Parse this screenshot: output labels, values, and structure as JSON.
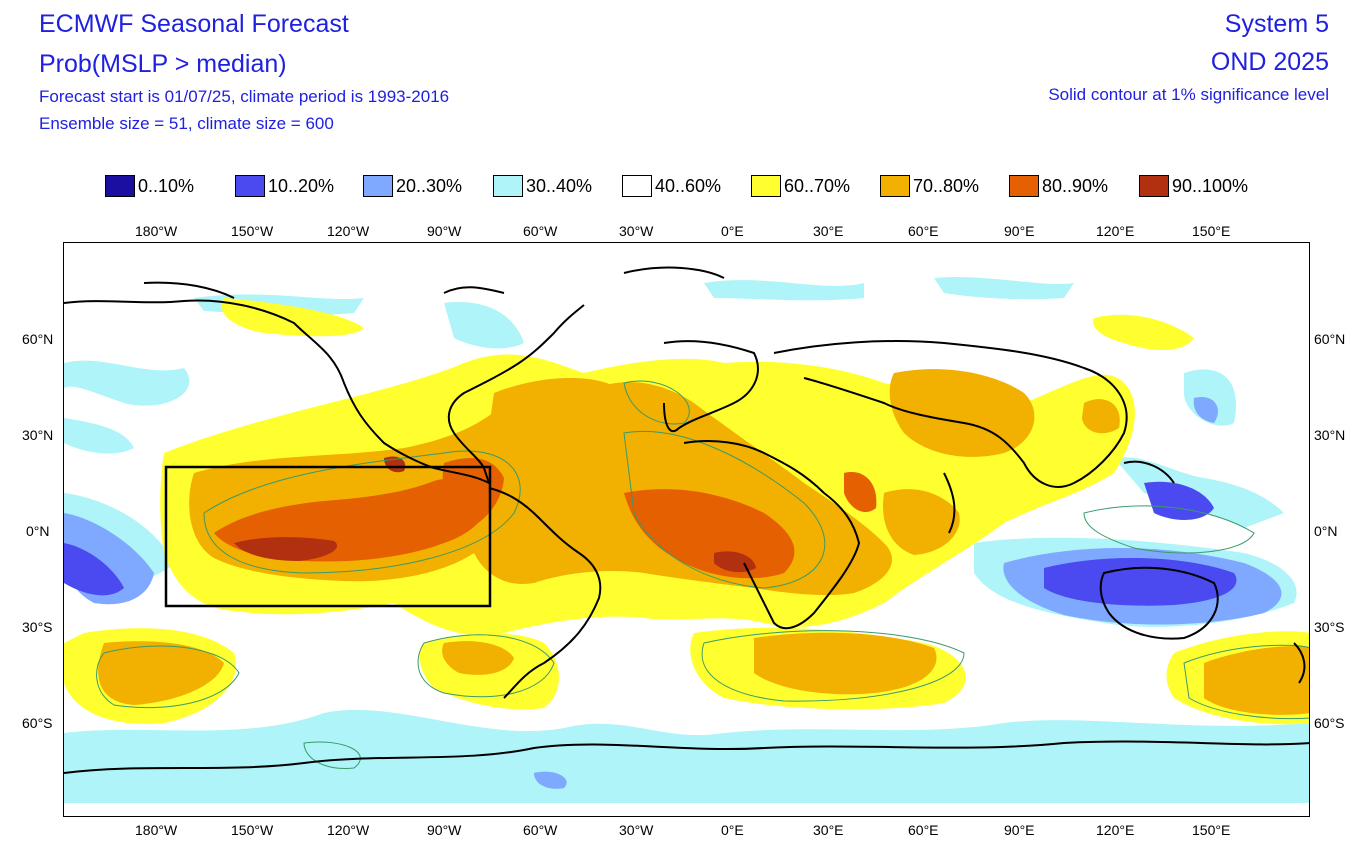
{
  "header": {
    "title": "ECMWF Seasonal Forecast",
    "subtitle": "Prob(MSLP > median)",
    "forecast_start": "Forecast start is 01/07/25, climate period is 1993-2016",
    "ensemble": "Ensemble size = 51, climate size = 600",
    "system": "System 5",
    "season": "OND 2025",
    "significance": "Solid contour at 1% significance level"
  },
  "legend": [
    {
      "label": "0..10%",
      "color": "#1a0fa0"
    },
    {
      "label": "10..20%",
      "color": "#4a4af0"
    },
    {
      "label": "20..30%",
      "color": "#7fa8ff"
    },
    {
      "label": "30..40%",
      "color": "#aef4f9"
    },
    {
      "label": "40..60%",
      "color": "#ffffff"
    },
    {
      "label": "60..70%",
      "color": "#ffff30"
    },
    {
      "label": "70..80%",
      "color": "#f2b000"
    },
    {
      "label": "80..90%",
      "color": "#e46000"
    },
    {
      "label": "90..100%",
      "color": "#b03010"
    }
  ],
  "axes": {
    "lon_labels": [
      "180°W",
      "150°W",
      "120°W",
      "90°W",
      "60°W",
      "30°W",
      "0°E",
      "30°E",
      "60°E",
      "90°E",
      "120°E",
      "150°E"
    ],
    "lat_labels": [
      "60°N",
      "30°N",
      "0°N",
      "30°S",
      "60°S"
    ]
  },
  "map": {
    "region_box": "Niño region box outline",
    "colors": {
      "contour": "#3a9a6a",
      "coast": "#000000"
    }
  }
}
